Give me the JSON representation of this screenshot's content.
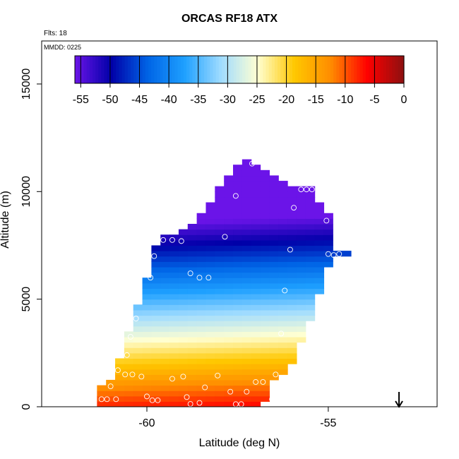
{
  "chart_data": {
    "type": "heatmap",
    "title": "ORCAS RF18 ATX",
    "flights_label": "Flts: 18",
    "date_label": "MMDD: 0225",
    "xlabel": "Latitude (deg N)",
    "ylabel": "Altitude (m)",
    "xlim": [
      -62.9,
      -52.0
    ],
    "ylim": [
      0,
      17000
    ],
    "x_ticks": [
      -60,
      -55
    ],
    "x_tick_labels": [
      "-60",
      "-55"
    ],
    "y_ticks": [
      0,
      5000,
      10000,
      15000
    ],
    "y_tick_labels": [
      "0",
      "5000",
      "10000",
      "15000"
    ],
    "colorbar": {
      "label_values": [
        -55,
        -50,
        -45,
        -40,
        -35,
        -30,
        -25,
        -20,
        -15,
        -10,
        -5,
        0
      ],
      "tick_labels": [
        "-55",
        "-50",
        "-45",
        "-40",
        "-35",
        "-30",
        "-25",
        "-20",
        "-15",
        "-10",
        "-5",
        "0"
      ],
      "range": [
        -56,
        0
      ],
      "colors": [
        "#6b14e8",
        "#0000a8",
        "#0064e6",
        "#1ea0ff",
        "#a0dcff",
        "#ffffd2",
        "#ffc800",
        "#ff8c00",
        "#ff0000",
        "#8c1010"
      ]
    },
    "field": {
      "description_units": "Air temperature (deg C) gridded by latitude and altitude",
      "lat_bin_deg": 0.25,
      "alt_bin_m": 250,
      "lapse_rate_c_per_km": -5.7,
      "surface_temp_c": -6.5,
      "columns": [
        {
          "lat": -61.25,
          "bottom": 0,
          "top": 1000
        },
        {
          "lat": -61.0,
          "bottom": 0,
          "top": 1250
        },
        {
          "lat": -60.75,
          "bottom": 0,
          "top": 2250
        },
        {
          "lat": -60.5,
          "bottom": 0,
          "top": 3500
        },
        {
          "lat": -60.25,
          "bottom": 0,
          "top": 4750
        },
        {
          "lat": -60.0,
          "bottom": 0,
          "top": 6000
        },
        {
          "lat": -59.75,
          "bottom": 0,
          "top": 7500
        },
        {
          "lat": -59.5,
          "bottom": 0,
          "top": 8000
        },
        {
          "lat": -59.25,
          "bottom": 0,
          "top": 8000
        },
        {
          "lat": -59.0,
          "bottom": 0,
          "top": 8250
        },
        {
          "lat": -58.75,
          "bottom": 0,
          "top": 8500
        },
        {
          "lat": -58.5,
          "bottom": 0,
          "top": 9000
        },
        {
          "lat": -58.25,
          "bottom": 0,
          "top": 9500
        },
        {
          "lat": -58.0,
          "bottom": 0,
          "top": 10250
        },
        {
          "lat": -57.75,
          "bottom": 0,
          "top": 10750
        },
        {
          "lat": -57.5,
          "bottom": 0,
          "top": 11250
        },
        {
          "lat": -57.25,
          "bottom": 0,
          "top": 11500
        },
        {
          "lat": -57.0,
          "bottom": 0,
          "top": 11250
        },
        {
          "lat": -56.75,
          "bottom": 250,
          "top": 11000
        },
        {
          "lat": -56.5,
          "bottom": 1250,
          "top": 10750
        },
        {
          "lat": -56.25,
          "bottom": 1500,
          "top": 10500
        },
        {
          "lat": -56.0,
          "bottom": 2000,
          "top": 10250
        },
        {
          "lat": -55.75,
          "bottom": 3000,
          "top": 10250
        },
        {
          "lat": -55.5,
          "bottom": 4000,
          "top": 10250
        },
        {
          "lat": -55.25,
          "bottom": 5250,
          "top": 9500
        },
        {
          "lat": -55.0,
          "bottom": 6500,
          "top": 9000
        },
        {
          "lat": -54.75,
          "bottom": 7000,
          "top": 7250
        },
        {
          "lat": -54.5,
          "bottom": 7000,
          "top": 7250
        }
      ]
    },
    "observations": [
      [
        -61.25,
        350
      ],
      [
        -61.1,
        350
      ],
      [
        -61.0,
        950
      ],
      [
        -60.85,
        350
      ],
      [
        -60.8,
        1700
      ],
      [
        -60.6,
        1500
      ],
      [
        -60.55,
        2400
      ],
      [
        -60.45,
        3250
      ],
      [
        -60.4,
        1500
      ],
      [
        -60.3,
        4100
      ],
      [
        -60.15,
        1400
      ],
      [
        -60.0,
        480
      ],
      [
        -59.9,
        6000
      ],
      [
        -59.85,
        300
      ],
      [
        -59.8,
        7000
      ],
      [
        -59.7,
        300
      ],
      [
        -59.55,
        7750
      ],
      [
        -59.3,
        1300
      ],
      [
        -59.3,
        7750
      ],
      [
        -59.05,
        7700
      ],
      [
        -59.0,
        1400
      ],
      [
        -58.9,
        450
      ],
      [
        -58.8,
        6200
      ],
      [
        -58.8,
        130
      ],
      [
        -58.55,
        6000
      ],
      [
        -58.55,
        180
      ],
      [
        -58.4,
        900
      ],
      [
        -58.3,
        6000
      ],
      [
        -58.05,
        1450
      ],
      [
        -57.85,
        7900
      ],
      [
        -57.7,
        700
      ],
      [
        -57.55,
        120
      ],
      [
        -57.55,
        9800
      ],
      [
        -57.4,
        120
      ],
      [
        -57.25,
        700
      ],
      [
        -57.1,
        11300
      ],
      [
        -57.0,
        1150
      ],
      [
        -56.8,
        1150
      ],
      [
        -56.55,
        350
      ],
      [
        -56.45,
        1500
      ],
      [
        -56.4,
        150
      ],
      [
        -56.3,
        3400
      ],
      [
        -56.2,
        5400
      ],
      [
        -56.05,
        1200
      ],
      [
        -55.95,
        9250
      ],
      [
        -55.75,
        10100
      ],
      [
        -55.6,
        10100
      ],
      [
        -55.45,
        10100
      ],
      [
        -55.25,
        10050
      ],
      [
        -55.05,
        8650
      ],
      [
        -55.0,
        7100
      ],
      [
        -54.85,
        7050
      ],
      [
        -54.7,
        7100
      ],
      [
        -56.05,
        7300
      ]
    ],
    "annotation": {
      "type": "arrow",
      "x": -53.05,
      "symbol": "down-arrow"
    }
  }
}
